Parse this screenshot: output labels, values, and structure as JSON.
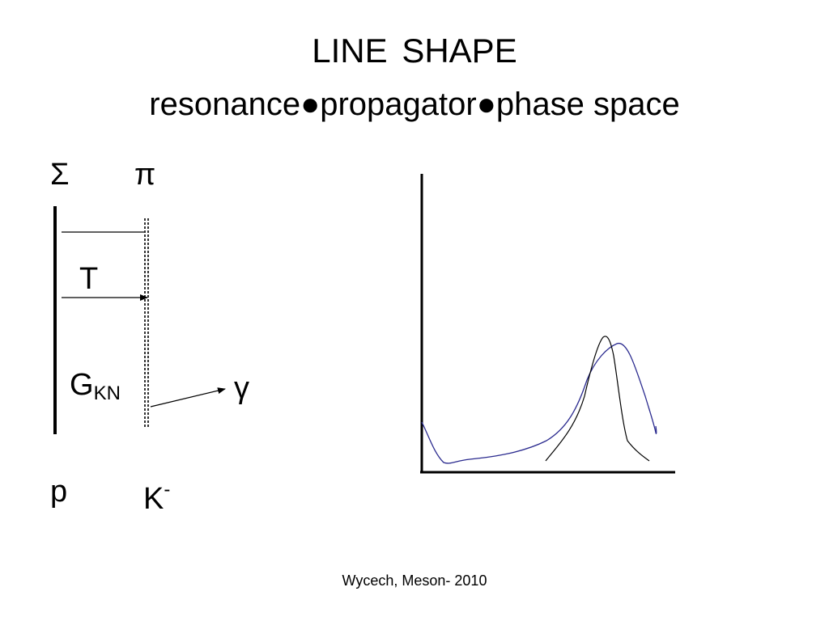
{
  "slide": {
    "title": "LINE  SHAPE",
    "subtitle": "resonance●propagator●phase space",
    "footer": "Wycech, Meson- 2010"
  },
  "diagram": {
    "labels": {
      "sigma": "Σ",
      "pi": "π",
      "t_matrix": "T",
      "g_main": "G",
      "g_sub": "KN",
      "gamma": "γ",
      "proton": "p",
      "kaon_main": "K",
      "kaon_sup": "-"
    }
  },
  "plot": {
    "colors": {
      "axes": "#000000",
      "phase_space_curve": "#2b2b8f",
      "peak_curves": "#000000"
    }
  }
}
